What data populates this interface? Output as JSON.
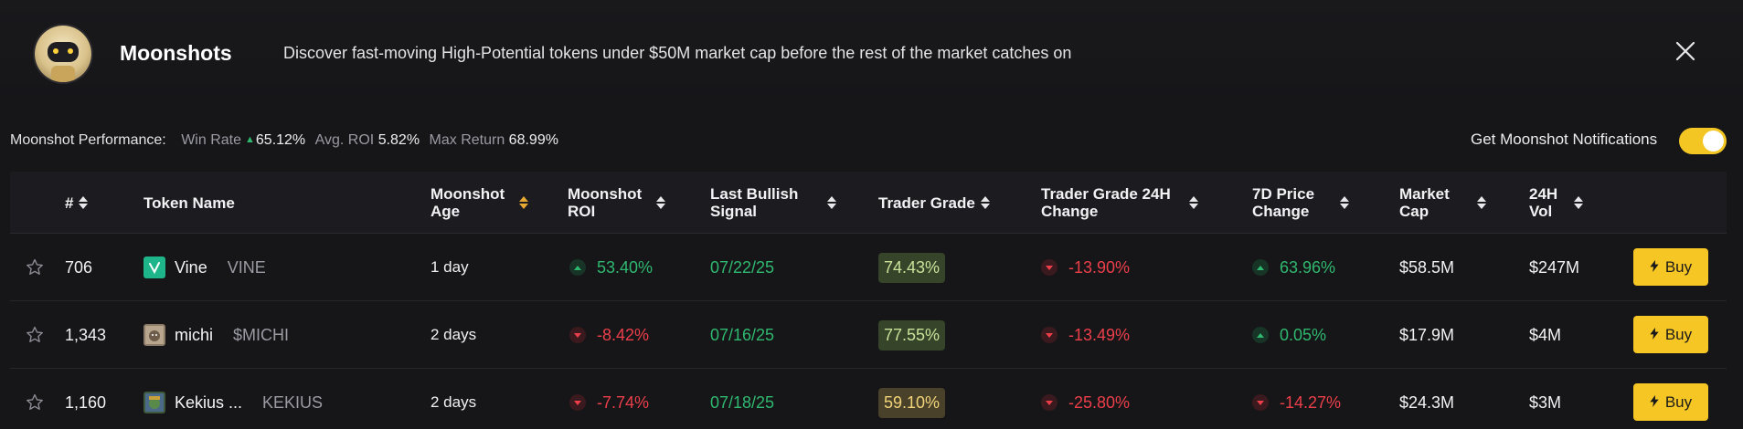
{
  "header": {
    "title": "Moonshots",
    "subtitle": "Discover fast-moving High-Potential tokens under $50M market cap before the rest of the market catches on"
  },
  "performance": {
    "label": "Moonshot Performance:",
    "win_rate_label": "Win Rate",
    "win_rate_value": "65.12%",
    "avg_roi_label": "Avg. ROI",
    "avg_roi_value": "5.82%",
    "max_return_label": "Max Return",
    "max_return_value": "68.99%"
  },
  "notifications": {
    "label": "Get Moonshot Notifications",
    "enabled": true
  },
  "table": {
    "columns": {
      "rank": "#",
      "token": "Token Name",
      "age_1": "Moonshot",
      "age_2": "Age",
      "roi_1": "Moonshot",
      "roi_2": "ROI",
      "signal_1": "Last Bullish",
      "signal_2": "Signal",
      "grade": "Trader Grade",
      "grade24_1": "Trader Grade 24H",
      "grade24_2": "Change",
      "price7d_1": "7D Price",
      "price7d_2": "Change",
      "mcap_1": "Market",
      "mcap_2": "Cap",
      "vol_1": "24H",
      "vol_2": "Vol"
    },
    "buy_label": "Buy",
    "rows": [
      {
        "rank": "706",
        "name": "Vine",
        "symbol": "VINE",
        "age": "1 day",
        "roi": "53.40%",
        "roi_dir": "up",
        "signal": "07/22/25",
        "grade": "74.43%",
        "grade_color": "green",
        "grade24": "-13.90%",
        "grade24_dir": "down",
        "price7d": "63.96%",
        "price7d_dir": "up",
        "mcap": "$58.5M",
        "vol": "$247M",
        "icon": "vine-icon",
        "icon_color": "#1db589"
      },
      {
        "rank": "1,343",
        "name": "michi",
        "symbol": "$MICHI",
        "age": "2 days",
        "roi": "-8.42%",
        "roi_dir": "down",
        "signal": "07/16/25",
        "grade": "77.55%",
        "grade_color": "green",
        "grade24": "-13.49%",
        "grade24_dir": "down",
        "price7d": "0.05%",
        "price7d_dir": "up",
        "mcap": "$17.9M",
        "vol": "$4M",
        "icon": "michi-cat-icon",
        "icon_color": "#8a7a66"
      },
      {
        "rank": "1,160",
        "name": "Kekius ...",
        "symbol": "KEKIUS",
        "age": "2 days",
        "roi": "-7.74%",
        "roi_dir": "down",
        "signal": "07/18/25",
        "grade": "59.10%",
        "grade_color": "yellow",
        "grade24": "-25.80%",
        "grade24_dir": "down",
        "price7d": "-14.27%",
        "price7d_dir": "down",
        "mcap": "$24.3M",
        "vol": "$3M",
        "icon": "kekius-icon",
        "icon_color": "#3e5a3a"
      }
    ]
  },
  "colors": {
    "accent": "#f6c624",
    "positive": "#2fb86f",
    "negative": "#ec3f4a",
    "background": "#161619"
  }
}
